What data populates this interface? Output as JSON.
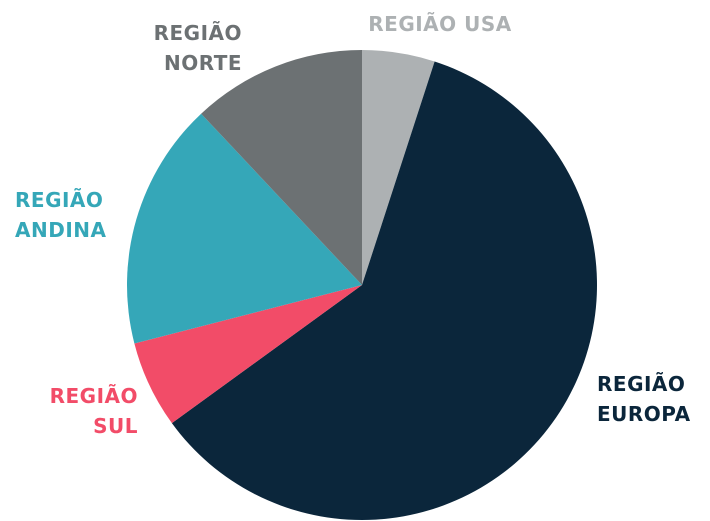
{
  "chart_data": {
    "type": "pie",
    "categories": [
      "REGIÃO USA",
      "REGIÃO EUROPA",
      "REGIÃO SUL",
      "REGIÃO ANDINA",
      "REGIÃO NORTE"
    ],
    "values": [
      5,
      60,
      6,
      17,
      12
    ],
    "colors": [
      "#adb1b3",
      "#0b263b",
      "#f24c68",
      "#35a7b8",
      "#6c7173"
    ]
  }
}
